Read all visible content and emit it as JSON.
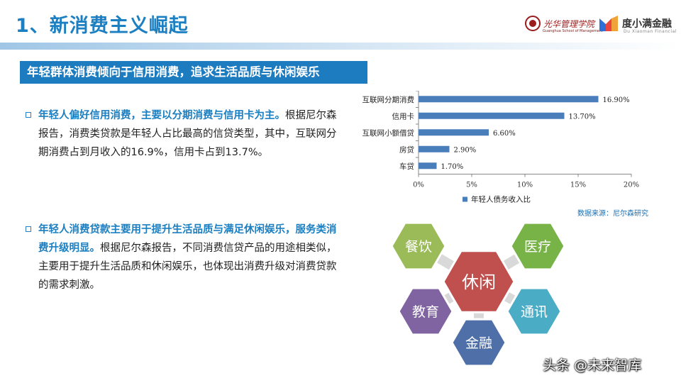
{
  "header": {
    "title": "1、新消费主义崛起",
    "logo1_script": "光华管理学院",
    "logo1_sub": "Guanghua School of Management",
    "logo2_text": "度小满金融",
    "logo2_sub": "Du Xiaoman Financial"
  },
  "subtitle": "年轻群体消费倾向于信用消费，追求生活品质与休闲娱乐",
  "bullets": [
    {
      "highlight": "年轻人偏好信用消费，主要以分期消费与信用卡为主。",
      "text": "根据尼尔森报告，消费类贷款是年轻人占比最高的信贷类型，其中，互联网分期消费占到月收入的16.9%，信用卡占到13.7%。"
    },
    {
      "highlight": "年轻人消费贷款主要用于提升生活品质与满足休闲娱乐，服务类消费升级明显。",
      "text": "根据尼尔森报告，不同消费信贷产品的用途相类似，主要用于提升生活品质和休闲娱乐，也体现出消费升级对消费贷款的需求刺激。"
    }
  ],
  "chart_data": {
    "type": "bar",
    "orientation": "horizontal",
    "categories": [
      "互联网分期消费",
      "信用卡",
      "互联网小额借贷",
      "房贷",
      "车贷"
    ],
    "values": [
      16.9,
      13.7,
      6.6,
      2.9,
      1.7
    ],
    "value_labels": [
      "16.90%",
      "13.70%",
      "6.60%",
      "2.90%",
      "1.70%"
    ],
    "x_ticks": [
      "0%",
      "5%",
      "10%",
      "15%",
      "20%"
    ],
    "xlim": [
      0,
      20
    ],
    "legend": "年轻人债务收入比",
    "legend_position": "bottom",
    "bar_color": "#4a7ebb"
  },
  "source": "数据来源：尼尔森研究",
  "hexagons": {
    "center": {
      "label": "休闲",
      "color": "#c0504d"
    },
    "items": [
      {
        "label": "餐饮",
        "color": "#9bbb59"
      },
      {
        "label": "医疗",
        "color": "#77b347"
      },
      {
        "label": "教育",
        "color": "#8064a2"
      },
      {
        "label": "通讯",
        "color": "#4bacc6"
      },
      {
        "label": "金融",
        "color": "#4f6fa8"
      }
    ]
  },
  "watermark": "头条 @未来智库"
}
